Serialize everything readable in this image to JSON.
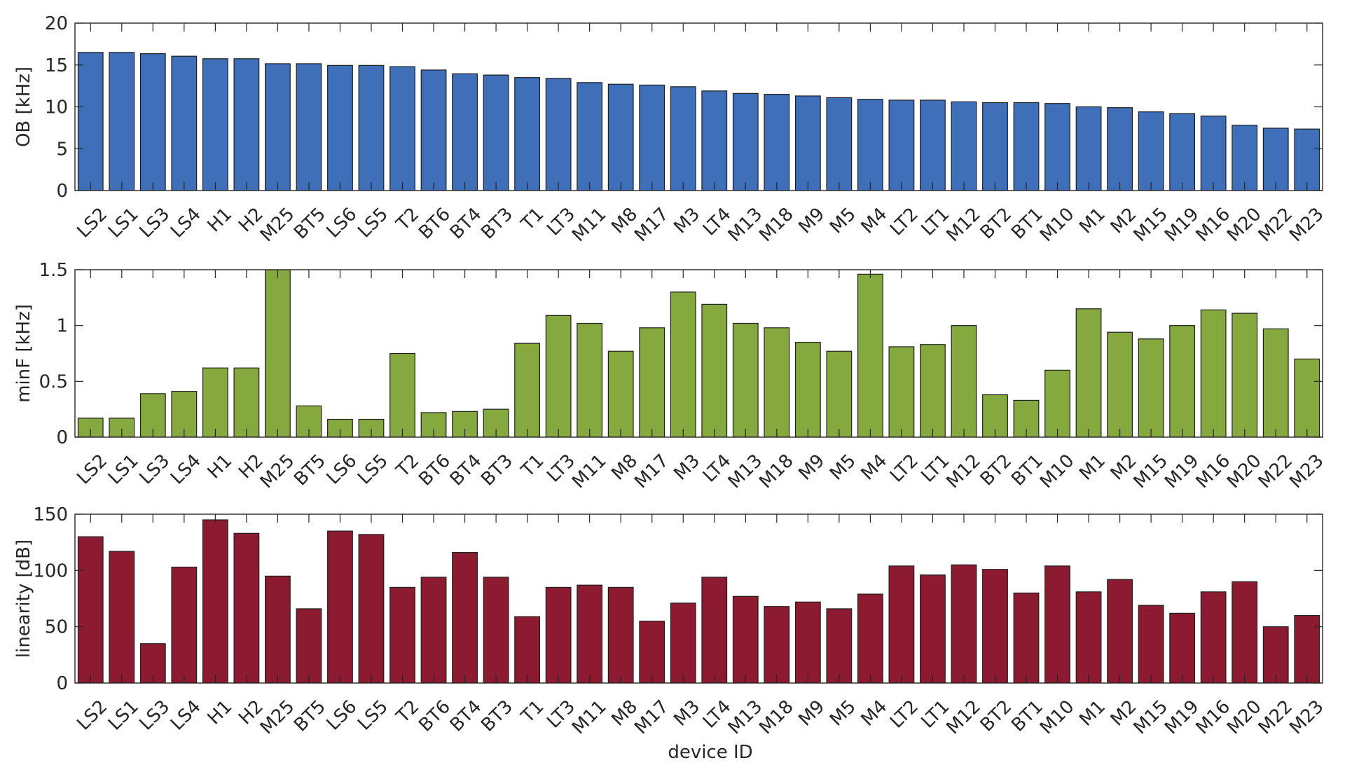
{
  "figure": {
    "xlabel": "device ID"
  },
  "chart_data": [
    {
      "type": "bar",
      "title": "",
      "ylabel": "OB [kHz]",
      "xlabel": "",
      "color": "#3e6fb8",
      "ylim": [
        0,
        20
      ],
      "yticks": [
        0,
        5,
        10,
        15,
        20
      ],
      "ytick_labels": [
        "0",
        "5",
        "10",
        "15",
        "20"
      ],
      "categories": [
        "LS2",
        "LS1",
        "LS3",
        "LS4",
        "H1",
        "H2",
        "M25",
        "BT5",
        "LS6",
        "LS5",
        "T2",
        "BT6",
        "BT4",
        "BT3",
        "T1",
        "LT3",
        "M11",
        "M8",
        "M17",
        "M3",
        "LT4",
        "M13",
        "M18",
        "M9",
        "M5",
        "M4",
        "LT2",
        "LT1",
        "M12",
        "BT2",
        "BT1",
        "M10",
        "M1",
        "M2",
        "M15",
        "M19",
        "M16",
        "M20",
        "M22",
        "M23"
      ],
      "values": [
        16.5,
        16.5,
        16.35,
        16.05,
        15.75,
        15.75,
        15.15,
        15.15,
        14.95,
        14.95,
        14.8,
        14.4,
        13.95,
        13.8,
        13.5,
        13.4,
        12.9,
        12.7,
        12.6,
        12.4,
        11.9,
        11.6,
        11.5,
        11.3,
        11.1,
        10.9,
        10.8,
        10.8,
        10.6,
        10.5,
        10.5,
        10.4,
        10.0,
        9.9,
        9.4,
        9.2,
        8.9,
        7.8,
        7.45,
        7.35
      ]
    },
    {
      "type": "bar",
      "title": "",
      "ylabel": "minF [kHz]",
      "xlabel": "",
      "color": "#85a83f",
      "ylim": [
        0,
        1.5
      ],
      "yticks": [
        0,
        0.5,
        1,
        1.5
      ],
      "ytick_labels": [
        "0",
        "0.5",
        "1",
        "1.5"
      ],
      "categories": [
        "LS2",
        "LS1",
        "LS3",
        "LS4",
        "H1",
        "H2",
        "M25",
        "BT5",
        "LS6",
        "LS5",
        "T2",
        "BT6",
        "BT4",
        "BT3",
        "T1",
        "LT3",
        "M11",
        "M8",
        "M17",
        "M3",
        "LT4",
        "M13",
        "M18",
        "M9",
        "M5",
        "M4",
        "LT2",
        "LT1",
        "M12",
        "BT2",
        "BT1",
        "M10",
        "M1",
        "M2",
        "M15",
        "M19",
        "M16",
        "M20",
        "M22",
        "M23"
      ],
      "values": [
        0.17,
        0.17,
        0.39,
        0.41,
        0.62,
        0.62,
        1.55,
        0.28,
        0.16,
        0.16,
        0.75,
        0.22,
        0.23,
        0.25,
        0.84,
        1.09,
        1.02,
        0.77,
        0.98,
        1.3,
        1.19,
        1.02,
        0.98,
        0.85,
        0.77,
        1.46,
        0.81,
        0.83,
        1.0,
        0.38,
        0.33,
        0.6,
        1.15,
        0.94,
        0.88,
        1.0,
        1.14,
        1.11,
        0.97,
        0.7
      ]
    },
    {
      "type": "bar",
      "title": "",
      "ylabel": "linearity [dB]",
      "xlabel": "device ID",
      "color": "#8c1b32",
      "ylim": [
        0,
        150
      ],
      "yticks": [
        0,
        50,
        100,
        150
      ],
      "ytick_labels": [
        "0",
        "50",
        "100",
        "150"
      ],
      "categories": [
        "LS2",
        "LS1",
        "LS3",
        "LS4",
        "H1",
        "H2",
        "M25",
        "BT5",
        "LS6",
        "LS5",
        "T2",
        "BT6",
        "BT4",
        "BT3",
        "T1",
        "LT3",
        "M11",
        "M8",
        "M17",
        "M3",
        "LT4",
        "M13",
        "M18",
        "M9",
        "M5",
        "M4",
        "LT2",
        "LT1",
        "M12",
        "BT2",
        "BT1",
        "M10",
        "M1",
        "M2",
        "M15",
        "M19",
        "M16",
        "M20",
        "M22",
        "M23"
      ],
      "values": [
        130,
        117,
        35,
        103,
        145,
        133,
        95,
        66,
        135,
        132,
        85,
        94,
        116,
        94,
        59,
        85,
        87,
        85,
        55,
        71,
        94,
        77,
        68,
        72,
        66,
        79,
        104,
        96,
        105,
        101,
        80,
        104,
        81,
        92,
        69,
        62,
        81,
        90,
        50,
        60
      ]
    }
  ]
}
